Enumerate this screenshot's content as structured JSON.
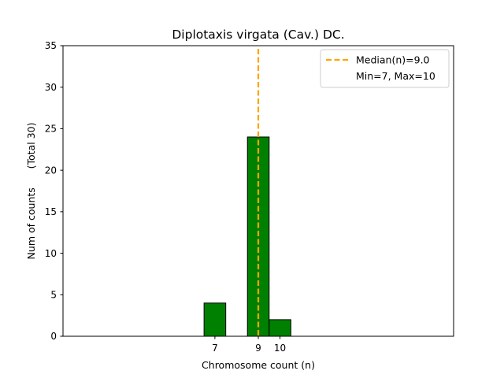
{
  "chart_data": {
    "type": "bar",
    "title": "Diplotaxis virgata (Cav.) DC.",
    "xlabel": "Chromosome count (n)",
    "ylabel": "Num of counts      (Total 30)",
    "xlim": [
      0,
      18
    ],
    "ylim": [
      0,
      35
    ],
    "x_ticks": [
      7,
      9,
      10
    ],
    "y_ticks": [
      0,
      5,
      10,
      15,
      20,
      25,
      30,
      35
    ],
    "bars": [
      {
        "x": 7,
        "value": 4
      },
      {
        "x": 9,
        "value": 24
      },
      {
        "x": 10,
        "value": 2
      }
    ],
    "bar_width": 1,
    "bar_color": "#008000",
    "bar_edge_color": "#000000",
    "baseline": {
      "from": 0,
      "to": 13.5
    },
    "median": 9.0,
    "median_color": "#ffa500",
    "legend": {
      "placement": "top-right",
      "entries": [
        "Median(n)=9.0",
        "Min=7, Max=10"
      ]
    },
    "grid": false
  }
}
